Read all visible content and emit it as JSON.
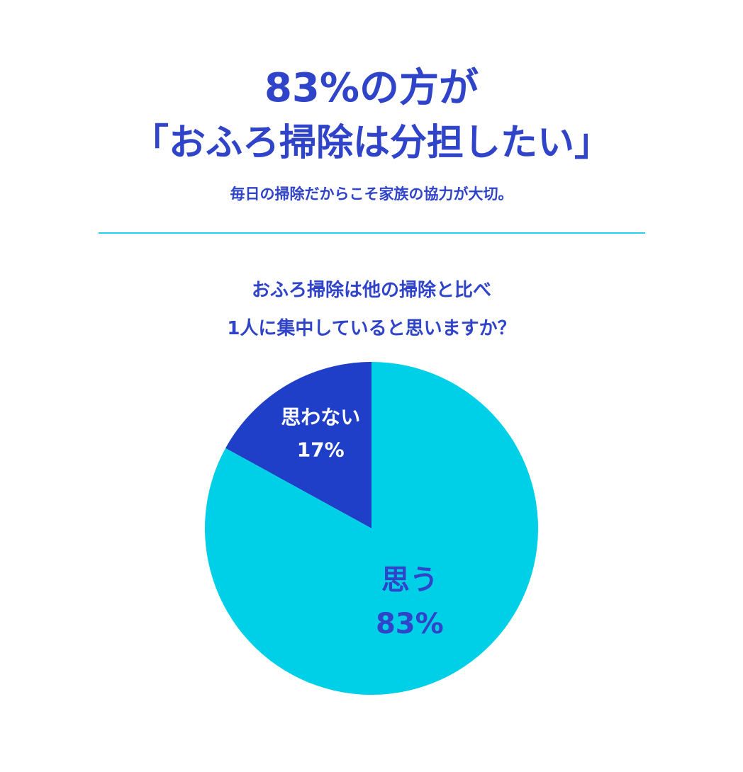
{
  "header": {
    "headline_line1": "83%の方が",
    "headline_line2": "「おふろ掃除は分担したい」",
    "subtitle": "毎日の掃除だからこそ家族の協力が大切。"
  },
  "question": {
    "line1": "おふろ掃除は他の掃除と比べ",
    "line2": "1人に集中していると思いますか？"
  },
  "colors": {
    "primary_text": "#2f44c8",
    "divider": "#21d0ee",
    "slice_yes": "#00cfe8",
    "slice_no": "#1f3fc8",
    "label_on_dark": "#ffffff"
  },
  "chart_data": {
    "type": "pie",
    "title": "おふろ掃除は他の掃除と比べ1人に集中していると思いますか？",
    "series": [
      {
        "name": "思わない",
        "value": 17,
        "label_value": "17%",
        "color": "#1f3fc8",
        "label_color": "#ffffff"
      },
      {
        "name": "思う",
        "value": 83,
        "label_value": "83%",
        "color": "#00cfe8",
        "label_color": "#2f44c8"
      }
    ],
    "start_angle_deg": 0,
    "direction": "counterclockwise",
    "legend": "none"
  }
}
